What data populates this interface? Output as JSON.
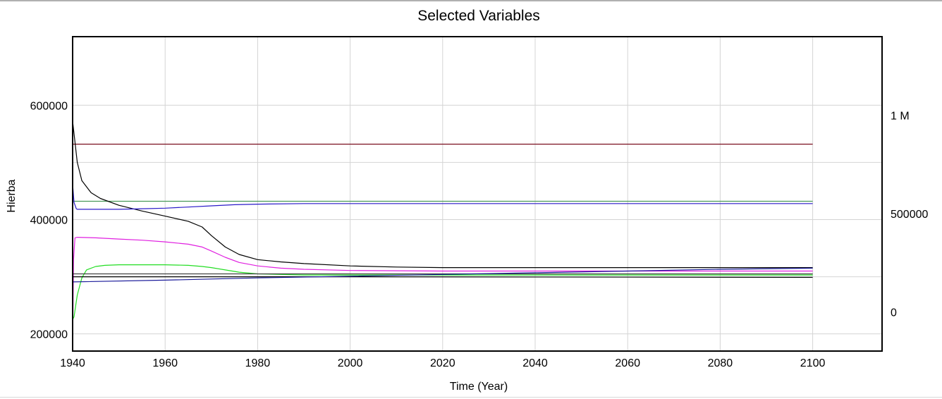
{
  "chart_data": {
    "type": "line",
    "title": "Selected Variables",
    "xlabel": "Time (Year)",
    "ylabel": "Hierba",
    "xlim": [
      1940,
      2115
    ],
    "ylim_left": [
      170000,
      720000
    ],
    "ylim_right": [
      -200000,
      1400000
    ],
    "x_ticks": [
      1940,
      1960,
      1980,
      2000,
      2020,
      2040,
      2060,
      2080,
      2100
    ],
    "x_tick_labels": [
      "1940",
      "1960",
      "1980",
      "2000",
      "2020",
      "2040",
      "2060",
      "2080",
      "2100"
    ],
    "y_ticks_left": [
      200000,
      400000,
      600000
    ],
    "y_tick_labels_left": [
      "200000",
      "400000",
      "600000"
    ],
    "y_ticks_right": [
      0,
      500000,
      1000000
    ],
    "y_tick_labels_right": [
      "0",
      "500000",
      "1 M"
    ],
    "grid": true,
    "series": [
      {
        "color": "#7a0f1f",
        "axis": "left",
        "x": [
          1940,
          2100
        ],
        "values": [
          532000,
          532000
        ]
      },
      {
        "color": "#4a9a5a",
        "axis": "left",
        "x": [
          1940,
          2100
        ],
        "values": [
          432000,
          432000
        ]
      },
      {
        "color": "#000000",
        "axis": "left",
        "x": [
          1940,
          1941,
          1942,
          1944,
          1946,
          1950,
          1955,
          1960,
          1965,
          1968,
          1970,
          1973,
          1976,
          1980,
          1985,
          1990,
          2000,
          2010,
          2020,
          2040,
          2060,
          2080,
          2100
        ],
        "values": [
          572000,
          500000,
          468000,
          447000,
          437000,
          425000,
          415000,
          406000,
          397000,
          387000,
          372000,
          352000,
          339000,
          330000,
          326000,
          323000,
          319000,
          317000,
          316000,
          316000,
          316000,
          316000,
          316000
        ]
      },
      {
        "color": "#2a1ac8",
        "axis": "left",
        "x": [
          1940,
          1940.3,
          1940.8,
          1941,
          1945,
          1950,
          1955,
          1960,
          1965,
          1970,
          1975,
          1980,
          1990,
          2000,
          2020,
          2050,
          2100
        ],
        "values": [
          462000,
          430000,
          419000,
          418000,
          418000,
          418000,
          419000,
          420000,
          422000,
          424000,
          426000,
          427000,
          428000,
          428000,
          428000,
          428000,
          428000
        ]
      },
      {
        "color": "#e020e0",
        "axis": "left",
        "x": [
          1940,
          1940.2,
          1940.5,
          1941,
          1945,
          1950,
          1955,
          1960,
          1965,
          1968,
          1970,
          1973,
          1976,
          1980,
          1985,
          1990,
          2000,
          2020,
          2050,
          2100
        ],
        "values": [
          175000,
          330000,
          368000,
          369000,
          368000,
          366000,
          364000,
          361000,
          357000,
          352000,
          345000,
          334000,
          325000,
          319000,
          315000,
          313000,
          311000,
          310000,
          310000,
          310000
        ]
      },
      {
        "color": "#22dd22",
        "axis": "left",
        "x": [
          1940,
          1940.3,
          1941,
          1942,
          1943,
          1945,
          1947,
          1950,
          1955,
          1960,
          1965,
          1968,
          1970,
          1973,
          1976,
          1980,
          1990,
          2000,
          2050,
          2100
        ],
        "values": [
          225000,
          230000,
          268000,
          298000,
          312000,
          318000,
          320000,
          321000,
          321000,
          321000,
          320000,
          318000,
          316000,
          312000,
          308000,
          305000,
          303000,
          303000,
          303000,
          303000
        ]
      },
      {
        "color": "#444444",
        "axis": "left",
        "x": [
          1940,
          2100
        ],
        "values": [
          305000,
          305000
        ]
      },
      {
        "color": "#000000",
        "axis": "left",
        "x": [
          1940,
          1980,
          2000,
          2100
        ],
        "values": [
          300000,
          300000,
          300000,
          299000
        ]
      },
      {
        "color": "#1a1a9a",
        "axis": "left",
        "x": [
          1940,
          1960,
          1980,
          2000,
          2020,
          2040,
          2060,
          2080,
          2100
        ],
        "values": [
          291000,
          294000,
          298000,
          301000,
          304000,
          307000,
          310000,
          313000,
          315000
        ]
      }
    ]
  }
}
